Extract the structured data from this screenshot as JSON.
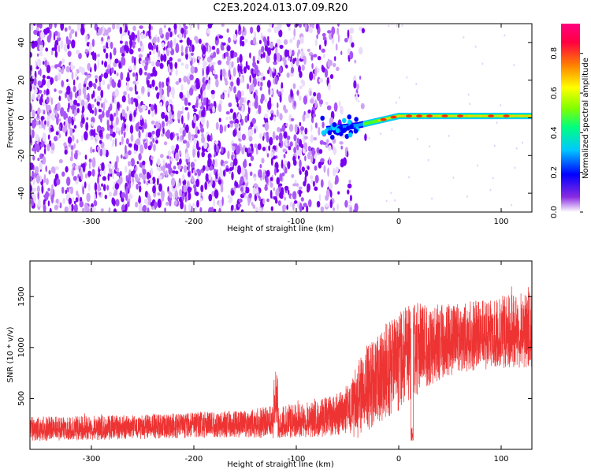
{
  "figure_title": "C2E3.2024.013.07.09.R20",
  "chart_data": [
    {
      "type": "heatmap",
      "panel": "spectrogram",
      "xlabel": "Height of straight line (km)",
      "ylabel": "Frequency (Hz)",
      "xlim": [
        -360,
        130
      ],
      "ylim": [
        -50,
        50
      ],
      "xticks": [
        -300,
        -200,
        -100,
        0,
        100
      ],
      "yticks": [
        -40,
        -20,
        0,
        20,
        40
      ],
      "xtick_labels": [
        "-300",
        "-200",
        "-100",
        "0",
        "100"
      ],
      "ytick_labels": [
        "-40",
        "-20",
        "0",
        "20",
        "40"
      ],
      "colorbar": {
        "label": "Normalized spectral amplitude",
        "range": [
          0,
          0.95
        ],
        "ticks": [
          0.0,
          0.2,
          0.4,
          0.6,
          0.8
        ],
        "tick_labels": [
          "0.0",
          "0.2",
          "0.4",
          "0.6",
          "0.8"
        ],
        "colormap": [
          "#ffffff",
          "#7f00ff",
          "#0000ff",
          "#00c8ff",
          "#00ff80",
          "#80ff00",
          "#ffff00",
          "#ff8000",
          "#ff0040",
          "#ff0080"
        ]
      },
      "features": {
        "noise_region_x": [
          -360,
          -40
        ],
        "signal_line_x": [
          -70,
          130
        ],
        "signal_frequency_start_hz": -6,
        "signal_frequency_end_hz": 1
      }
    },
    {
      "type": "line",
      "panel": "snr",
      "xlabel": "Height of straight line (km)",
      "ylabel": "SNR (10 * v/v)",
      "xlim": [
        -360,
        130
      ],
      "ylim": [
        0,
        1850
      ],
      "xticks": [
        -300,
        -200,
        -100,
        0,
        100
      ],
      "yticks": [
        500,
        1000,
        1500
      ],
      "xtick_labels": [
        "-300",
        "-200",
        "-100",
        "0",
        "100"
      ],
      "ytick_labels": [
        "500",
        "1000",
        "1500"
      ],
      "color": "#ee3333",
      "series": [
        {
          "name": "SNR",
          "x": [
            -360,
            -300,
            -250,
            -200,
            -150,
            -120,
            -100,
            -80,
            -60,
            -50,
            -40,
            -30,
            -20,
            -10,
            0,
            10,
            20,
            40,
            60,
            80,
            100,
            130
          ],
          "y": [
            200,
            210,
            220,
            240,
            250,
            270,
            280,
            300,
            340,
            390,
            480,
            600,
            700,
            800,
            870,
            950,
            1000,
            1050,
            1100,
            1120,
            1150,
            1180
          ],
          "spread": [
            80,
            80,
            80,
            85,
            90,
            110,
            110,
            120,
            140,
            170,
            250,
            280,
            300,
            320,
            330,
            330,
            300,
            250,
            230,
            230,
            240,
            250
          ]
        }
      ]
    }
  ]
}
